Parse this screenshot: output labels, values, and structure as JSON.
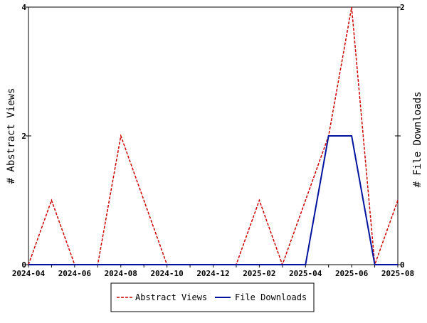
{
  "chart_data": {
    "type": "line",
    "x": [
      "2024-04",
      "2024-05",
      "2024-06",
      "2024-07",
      "2024-08",
      "2024-09",
      "2024-10",
      "2024-11",
      "2024-12",
      "2025-01",
      "2025-02",
      "2025-03",
      "2025-04",
      "2025-05",
      "2025-06",
      "2025-07",
      "2025-08"
    ],
    "x_tick_labels": [
      "2024-04",
      "2024-06",
      "2024-08",
      "2024-10",
      "2024-12",
      "2025-02",
      "2025-04",
      "2025-06",
      "2025-08"
    ],
    "series": [
      {
        "name": "Abstract Views",
        "axis": "left",
        "color": "#cc0000",
        "dash": "dashed",
        "values": [
          0,
          1,
          0,
          0,
          2,
          1,
          0,
          0,
          0,
          0,
          1,
          0,
          1,
          2,
          4,
          0,
          1
        ]
      },
      {
        "name": "File Downloads",
        "axis": "right",
        "color": "#00139e",
        "dash": "solid",
        "values": [
          0,
          0,
          0,
          0,
          0,
          0,
          0,
          0,
          0,
          0,
          0,
          0,
          0,
          1,
          1,
          0,
          0
        ]
      }
    ],
    "ylabel_left": "# Abstract Views",
    "ylabel_right": "# File Downloads",
    "ylim_left": [
      0,
      4
    ],
    "yticks_left": [
      0,
      2,
      4
    ],
    "ylim_right": [
      0,
      2
    ],
    "yticks_right": [
      0,
      1,
      2
    ],
    "ytick_labels_right": [
      "0",
      "",
      "2"
    ],
    "grid": false,
    "legend_position": "bottom"
  }
}
